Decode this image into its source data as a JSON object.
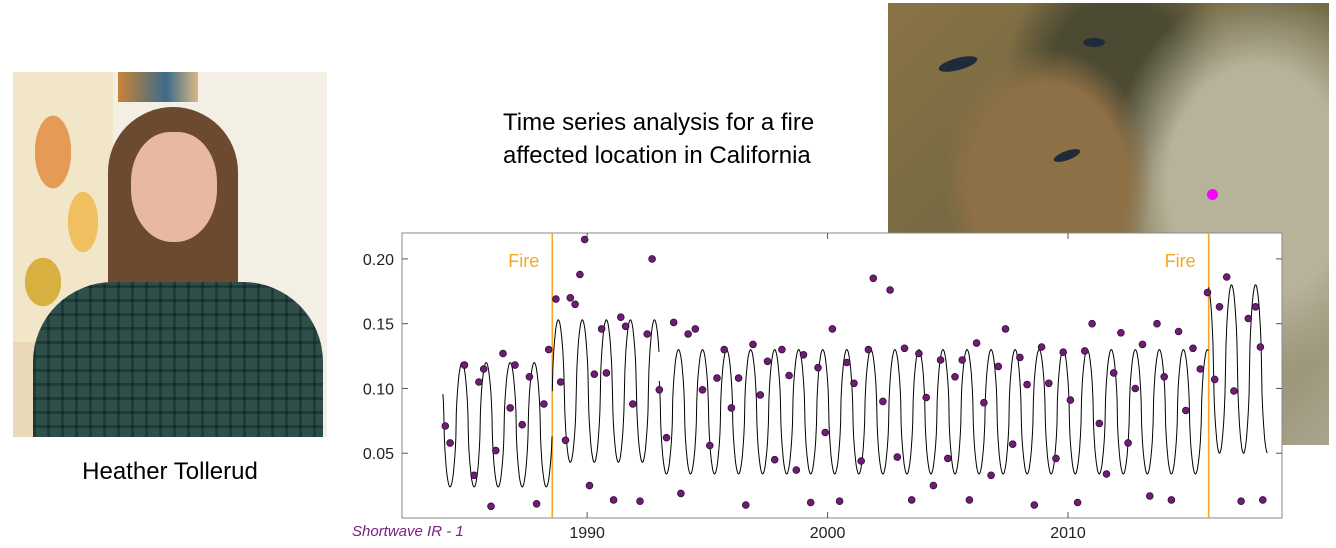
{
  "person": {
    "name": "Heather Tollerud"
  },
  "caption": {
    "line1": "Time series analysis for a fire",
    "line2": "affected location in California"
  },
  "satellite": {
    "marker_color": "#ff00ff"
  },
  "chart_data": {
    "type": "scatter",
    "title": "",
    "ylabel": "",
    "band_label": "Shortwave IR - 1",
    "xlim": [
      1982.3,
      2018.9
    ],
    "ylim": [
      0.0,
      0.22
    ],
    "x_ticks": [
      1990,
      2000,
      2010
    ],
    "x_tick_labels": [
      "1990",
      "2000",
      "2010"
    ],
    "y_ticks": [
      0.05,
      0.1,
      0.15,
      0.2
    ],
    "y_tick_labels": [
      "0.05",
      "0.10",
      "0.15",
      "0.20"
    ],
    "grid": false,
    "colors": {
      "points": "#6b1e72",
      "point_edge": "#3a0a3e",
      "fit_line": "#000000",
      "fire_line": "#f5a623",
      "band_label": "#7a1f80"
    },
    "fire_events": [
      {
        "label": "Fire",
        "x": 1988.55
      },
      {
        "label": "Fire",
        "x": 2015.85
      }
    ],
    "fit_model": {
      "segments": [
        {
          "start": 1984.0,
          "end": 1988.55,
          "base": 0.072,
          "amp": 0.048
        },
        {
          "start": 1988.55,
          "end": 1993.0,
          "base": 0.098,
          "amp": 0.055
        },
        {
          "start": 1993.0,
          "end": 2015.85,
          "base": 0.082,
          "amp": 0.048
        },
        {
          "start": 2015.85,
          "end": 2018.3,
          "base": 0.115,
          "amp": 0.065
        }
      ]
    },
    "series": [
      {
        "x": [
          1984.1,
          1984.3,
          1984.9,
          1985.3,
          1985.5,
          1985.7,
          1986.0,
          1986.2,
          1986.5,
          1986.8,
          1987.0,
          1987.3,
          1987.6,
          1987.9,
          1988.2,
          1988.4,
          1988.7,
          1988.9,
          1989.1,
          1989.3,
          1989.5,
          1989.7,
          1989.9,
          1990.1,
          1990.3,
          1990.6,
          1990.8,
          1991.1,
          1991.4,
          1991.6,
          1991.9,
          1992.2,
          1992.5,
          1992.7,
          1993.0,
          1993.3,
          1993.6,
          1993.9,
          1994.2,
          1994.5,
          1994.8,
          1995.1,
          1995.4,
          1995.7,
          1996.0,
          1996.3,
          1996.6,
          1996.9,
          1997.2,
          1997.5,
          1997.8,
          1998.1,
          1998.4,
          1998.7,
          1999.0,
          1999.3,
          1999.6,
          1999.9,
          2000.2,
          2000.5,
          2000.8,
          2001.1,
          2001.4,
          2001.7,
          2001.9,
          2002.3,
          2002.6,
          2002.9,
          2003.2,
          2003.5,
          2003.8,
          2004.1,
          2004.4,
          2004.7,
          2005.0,
          2005.3,
          2005.6,
          2005.9,
          2006.2,
          2006.5,
          2006.8,
          2007.1,
          2007.4,
          2007.7,
          2008.0,
          2008.3,
          2008.6,
          2008.9,
          2009.2,
          2009.5,
          2009.8,
          2010.1,
          2010.4,
          2010.7,
          2011.0,
          2011.3,
          2011.6,
          2011.9,
          2012.2,
          2012.5,
          2012.8,
          2013.1,
          2013.4,
          2013.7,
          2014.0,
          2014.3,
          2014.6,
          2014.9,
          2015.2,
          2015.5,
          2015.8,
          2016.1,
          2016.3,
          2016.6,
          2016.9,
          2017.2,
          2017.5,
          2017.8,
          2018.0,
          2018.1
        ],
        "y": [
          0.071,
          0.058,
          0.118,
          0.033,
          0.105,
          0.115,
          0.009,
          0.052,
          0.127,
          0.085,
          0.118,
          0.072,
          0.109,
          0.011,
          0.088,
          0.13,
          0.169,
          0.105,
          0.06,
          0.17,
          0.165,
          0.188,
          0.215,
          0.025,
          0.111,
          0.146,
          0.112,
          0.014,
          0.155,
          0.148,
          0.088,
          0.013,
          0.142,
          0.2,
          0.099,
          0.062,
          0.151,
          0.019,
          0.142,
          0.146,
          0.099,
          0.056,
          0.108,
          0.13,
          0.085,
          0.108,
          0.01,
          0.134,
          0.095,
          0.121,
          0.045,
          0.13,
          0.11,
          0.037,
          0.126,
          0.012,
          0.116,
          0.066,
          0.146,
          0.013,
          0.12,
          0.104,
          0.044,
          0.13,
          0.185,
          0.09,
          0.176,
          0.047,
          0.131,
          0.014,
          0.127,
          0.093,
          0.025,
          0.122,
          0.046,
          0.109,
          0.122,
          0.014,
          0.135,
          0.089,
          0.033,
          0.117,
          0.146,
          0.057,
          0.124,
          0.103,
          0.01,
          0.132,
          0.104,
          0.046,
          0.128,
          0.091,
          0.012,
          0.129,
          0.15,
          0.073,
          0.034,
          0.112,
          0.143,
          0.058,
          0.1,
          0.134,
          0.017,
          0.15,
          0.109,
          0.014,
          0.144,
          0.083,
          0.131,
          0.115,
          0.174,
          0.107,
          0.163,
          0.186,
          0.098,
          0.013,
          0.154,
          0.163,
          0.132,
          0.014
        ]
      }
    ]
  }
}
